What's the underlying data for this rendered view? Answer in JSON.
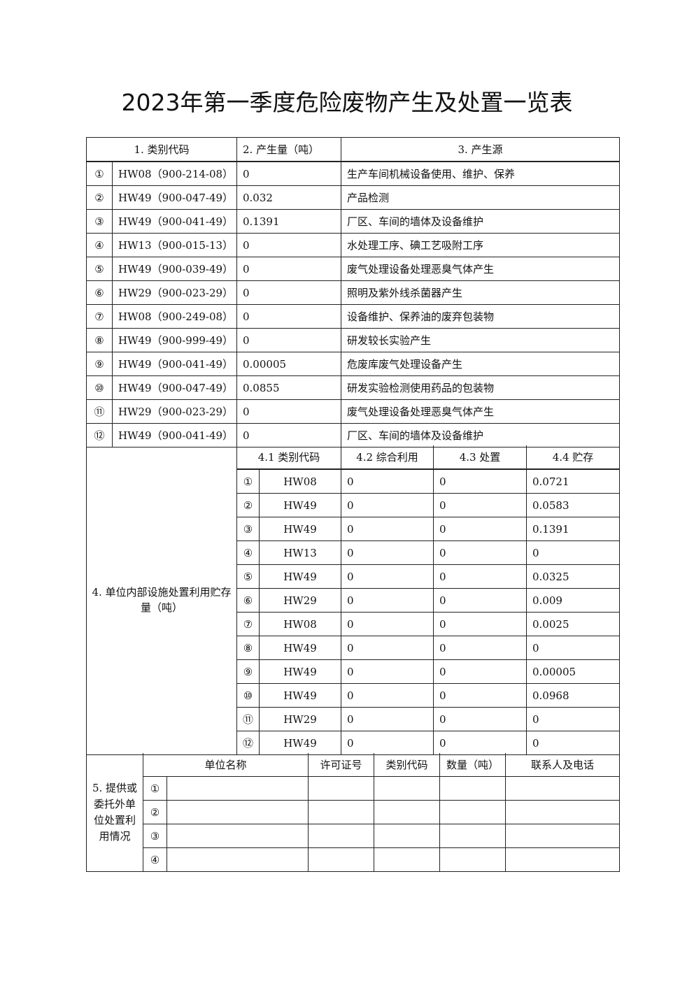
{
  "title": "2023年第一季度危险废物产生及处置一览表",
  "section1_3": {
    "headers": [
      "1. 类别代码",
      "2. 产生量（吨）",
      "3. 产生源"
    ],
    "rows": [
      {
        "no": "①",
        "code": "HW08（900-214-08）",
        "amount": "0",
        "source": "生产车间机械设备使用、维护、保养"
      },
      {
        "no": "②",
        "code": "HW49（900-047-49）",
        "amount": "0.032",
        "source": "产品检测"
      },
      {
        "no": "③",
        "code": "HW49（900-041-49）",
        "amount": "0.1391",
        "source": "厂区、车间的墙体及设备维护"
      },
      {
        "no": "④",
        "code": "HW13（900-015-13）",
        "amount": "0",
        "source": "水处理工序、碘工艺吸附工序"
      },
      {
        "no": "⑤",
        "code": "HW49（900-039-49）",
        "amount": "0",
        "source": "废气处理设备处理恶臭气体产生"
      },
      {
        "no": "⑥",
        "code": "HW29（900-023-29）",
        "amount": "0",
        "source": "照明及紫外线杀菌器产生"
      },
      {
        "no": "⑦",
        "code": "HW08（900-249-08）",
        "amount": "0",
        "source": "设备维护、保养油的废弃包装物"
      },
      {
        "no": "⑧",
        "code": "HW49（900-999-49）",
        "amount": "0",
        "source": "研发较长实验产生"
      },
      {
        "no": "⑨",
        "code": "HW49（900-041-49）",
        "amount": "0.00005",
        "source": "危废库废气处理设备产生"
      },
      {
        "no": "⑩",
        "code": "HW49（900-047-49）",
        "amount": "0.0855",
        "source": "研发实验检测使用药品的包装物"
      },
      {
        "no": "⑪",
        "code": "HW29（900-023-29）",
        "amount": "0",
        "source": "废气处理设备处理恶臭气体产生"
      },
      {
        "no": "⑫",
        "code": "HW49（900-041-49）",
        "amount": "0",
        "source": "厂区、车间的墙体及设备维护"
      }
    ]
  },
  "section4": {
    "label": "4. 单位内部设施处置利用贮存量（吨）",
    "headers": [
      "4.1 类别代码",
      "4.2 综合利用",
      "4.3 处置",
      "4.4 贮存"
    ],
    "rows": [
      {
        "no": "①",
        "code": "HW08",
        "reuse": "0",
        "disposal": "0",
        "storage": "0.0721"
      },
      {
        "no": "②",
        "code": "HW49",
        "reuse": "0",
        "disposal": "0",
        "storage": "0.0583"
      },
      {
        "no": "③",
        "code": "HW49",
        "reuse": "0",
        "disposal": "0",
        "storage": "0.1391"
      },
      {
        "no": "④",
        "code": "HW13",
        "reuse": "0",
        "disposal": "0",
        "storage": "0"
      },
      {
        "no": "⑤",
        "code": "HW49",
        "reuse": "0",
        "disposal": "0",
        "storage": "0.0325"
      },
      {
        "no": "⑥",
        "code": "HW29",
        "reuse": "0",
        "disposal": "0",
        "storage": "0.009"
      },
      {
        "no": "⑦",
        "code": "HW08",
        "reuse": "0",
        "disposal": "0",
        "storage": "0.0025"
      },
      {
        "no": "⑧",
        "code": "HW49",
        "reuse": "0",
        "disposal": "0",
        "storage": "0"
      },
      {
        "no": "⑨",
        "code": "HW49",
        "reuse": "0",
        "disposal": "0",
        "storage": "0.00005"
      },
      {
        "no": "⑩",
        "code": "HW49",
        "reuse": "0",
        "disposal": "0",
        "storage": "0.0968"
      },
      {
        "no": "⑪",
        "code": "HW29",
        "reuse": "0",
        "disposal": "0",
        "storage": "0"
      },
      {
        "no": "⑫",
        "code": "HW49",
        "reuse": "0",
        "disposal": "0",
        "storage": "0"
      }
    ]
  },
  "section5": {
    "label": "5. 提供或委托外单位处置利用情况",
    "headers": [
      "单位名称",
      "许可证号",
      "类别代码",
      "数量（吨）",
      "联系人及电话"
    ],
    "rows": [
      {
        "no": "①"
      },
      {
        "no": "②"
      },
      {
        "no": "③"
      },
      {
        "no": "④"
      }
    ]
  }
}
